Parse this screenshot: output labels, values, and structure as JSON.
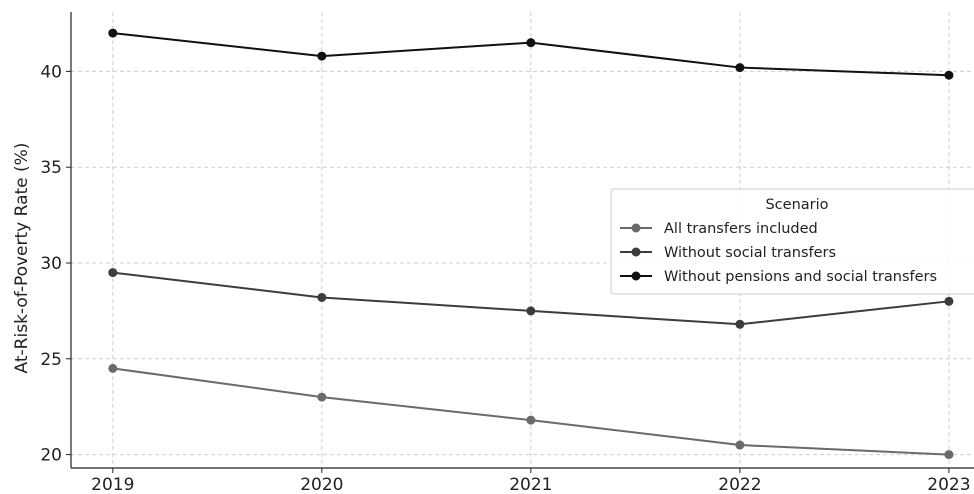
{
  "chart_data": {
    "type": "line",
    "title": "",
    "xlabel": "",
    "ylabel": "At-Risk-of-Poverty Rate (%)",
    "x": [
      2019,
      2020,
      2021,
      2022,
      2023
    ],
    "x_tick_labels": [
      "2019",
      "2020",
      "2021",
      "2022",
      "2023"
    ],
    "y_ticks": [
      20,
      25,
      30,
      35,
      40
    ],
    "y_tick_labels": [
      "20",
      "25",
      "30",
      "35",
      "40"
    ],
    "ylim": [
      19.3,
      43.1
    ],
    "xlim": [
      2018.8,
      2023.12
    ],
    "grid": true,
    "legend": {
      "title": "Scenario",
      "placement": "right"
    },
    "series": [
      {
        "name": "All transfers included",
        "color": "#6a6a6a",
        "values": [
          24.5,
          23.0,
          21.8,
          20.5,
          20.0
        ]
      },
      {
        "name": "Without social transfers",
        "color": "#3c3c3c",
        "values": [
          29.5,
          28.2,
          27.5,
          26.8,
          28.0
        ]
      },
      {
        "name": "Without pensions and social transfers",
        "color": "#111111",
        "values": [
          42.0,
          40.8,
          41.5,
          40.2,
          39.8
        ]
      }
    ]
  }
}
